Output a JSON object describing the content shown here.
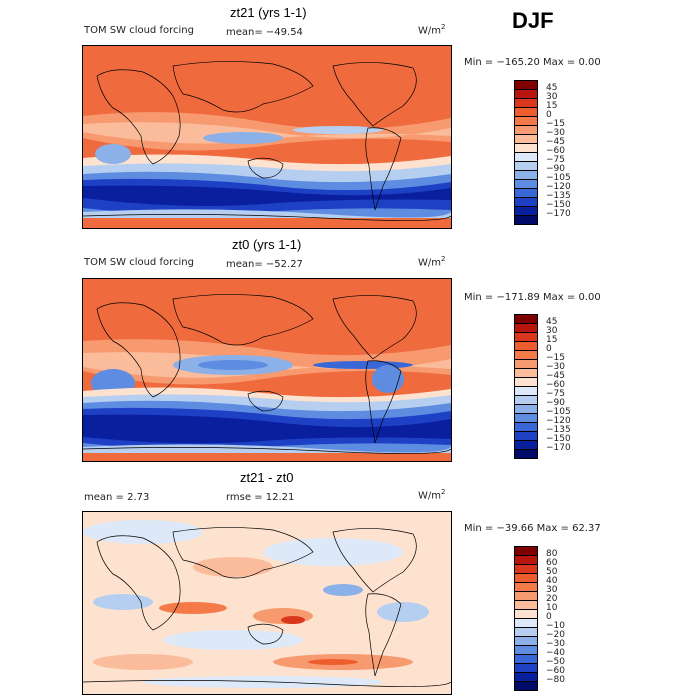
{
  "season": "DJF",
  "panels": [
    {
      "title": "zt21 (yrs 1-1)",
      "field": "TOM SW cloud forcing",
      "stat": "mean= −49.54",
      "stat2": "",
      "units": "W/m",
      "units_exp": "2",
      "minmax": "Min = −165.20 Max =    0.00",
      "colorbar": {
        "labels": [
          "45",
          "30",
          "15",
          "0",
          "−15",
          "−30",
          "−45",
          "−60",
          "−75",
          "−90",
          "−105",
          "−120",
          "−135",
          "−150",
          "−170"
        ],
        "colors": [
          "#7f0000",
          "#b8150f",
          "#d9381c",
          "#ee5d2e",
          "#f47a4a",
          "#f89a70",
          "#fbbc9c",
          "#fde2cf",
          "#dde9f8",
          "#b6cff0",
          "#8cb0e8",
          "#5e8ce0",
          "#3a67d6",
          "#1d40c4",
          "#0a1f9e",
          "#000a6b"
        ]
      }
    },
    {
      "title": "zt0 (yrs 1-1)",
      "field": "TOM SW cloud forcing",
      "stat": "mean= −52.27",
      "stat2": "",
      "units": "W/m",
      "units_exp": "2",
      "minmax": "Min = −171.89 Max =    0.00",
      "colorbar": {
        "labels": [
          "45",
          "30",
          "15",
          "0",
          "−15",
          "−30",
          "−45",
          "−60",
          "−75",
          "−90",
          "−105",
          "−120",
          "−135",
          "−150",
          "−170"
        ],
        "colors": [
          "#7f0000",
          "#b8150f",
          "#d9381c",
          "#ee5d2e",
          "#f47a4a",
          "#f89a70",
          "#fbbc9c",
          "#fde2cf",
          "#dde9f8",
          "#b6cff0",
          "#8cb0e8",
          "#5e8ce0",
          "#3a67d6",
          "#1d40c4",
          "#0a1f9e",
          "#000a6b"
        ]
      }
    },
    {
      "title": "zt21 - zt0",
      "field": "mean =    2.73",
      "stat": "rmse =   12.21",
      "stat2": "",
      "units": "W/m",
      "units_exp": "2",
      "minmax": "Min = −39.66 Max =  62.37",
      "colorbar": {
        "labels": [
          "80",
          "60",
          "50",
          "40",
          "30",
          "20",
          "10",
          "0",
          "−10",
          "−20",
          "−30",
          "−40",
          "−50",
          "−60",
          "−80"
        ],
        "colors": [
          "#7f0000",
          "#b8150f",
          "#d9381c",
          "#ee5d2e",
          "#f47a4a",
          "#f89a70",
          "#fbbc9c",
          "#fde2cf",
          "#dde9f8",
          "#b6cff0",
          "#8cb0e8",
          "#5e8ce0",
          "#3a67d6",
          "#1d40c4",
          "#0a1f9e",
          "#000a6b"
        ]
      }
    }
  ]
}
